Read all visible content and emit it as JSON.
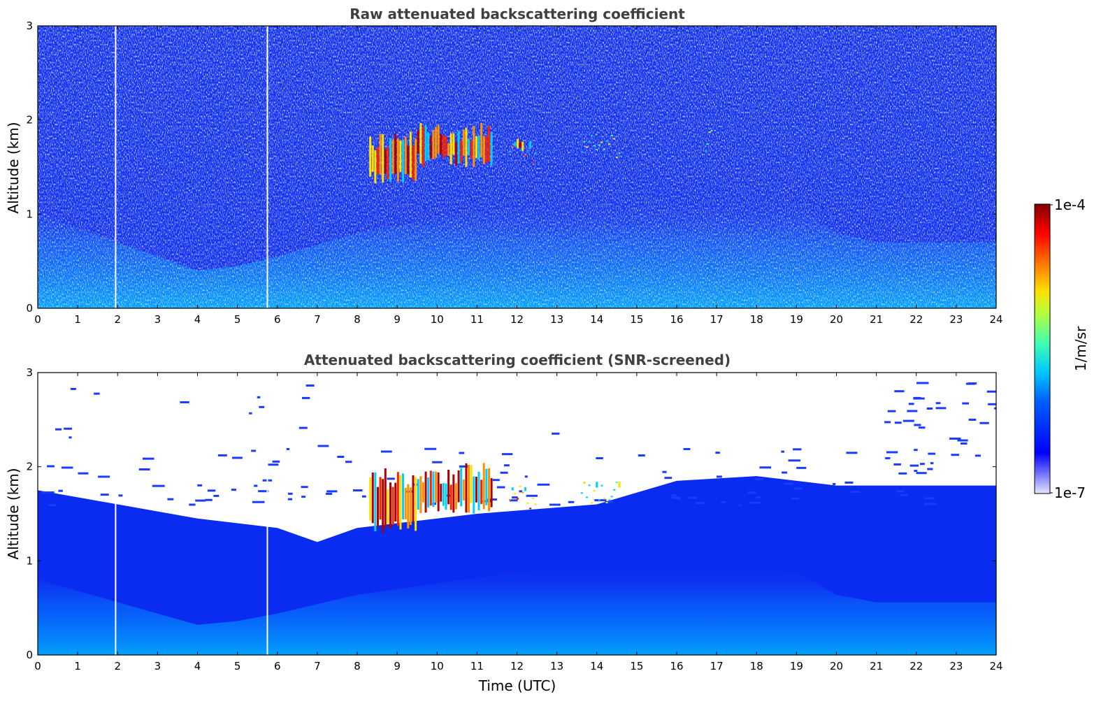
{
  "figure": {
    "xlabel": "Time (UTC)",
    "colorbar": {
      "label": "1/m/sr",
      "max_label": "1e-4",
      "min_label": "1e-7",
      "scale": "log",
      "colormap": "jet",
      "range": [
        1e-07,
        0.0001
      ]
    }
  },
  "chart_data": [
    {
      "type": "heatmap",
      "title": "Raw attenuated backscattering coefficient",
      "xlabel": "",
      "ylabel": "Altitude (km)",
      "xlim": [
        0,
        24
      ],
      "ylim": [
        0,
        3
      ],
      "xticks": [
        "0",
        "1",
        "2",
        "3",
        "4",
        "5",
        "6",
        "7",
        "8",
        "9",
        "10",
        "11",
        "12",
        "13",
        "14",
        "15",
        "16",
        "17",
        "18",
        "19",
        "20",
        "21",
        "22",
        "23",
        "24"
      ],
      "yticks": [
        "0",
        "1",
        "2",
        "3"
      ],
      "missing_profiles_utc": [
        1.95,
        5.75
      ],
      "background_color": "#1030f0",
      "noise_color": "#ffffff",
      "boundary_layer": [
        {
          "t": 0,
          "top_km": 1.0
        },
        {
          "t": 2,
          "top_km": 0.7
        },
        {
          "t": 3,
          "top_km": 0.55
        },
        {
          "t": 4,
          "top_km": 0.4
        },
        {
          "t": 5,
          "top_km": 0.45
        },
        {
          "t": 6,
          "top_km": 0.55
        },
        {
          "t": 8,
          "top_km": 0.8
        },
        {
          "t": 12,
          "top_km": 1.1
        },
        {
          "t": 16,
          "top_km": 1.2
        },
        {
          "t": 19,
          "top_km": 1.1
        },
        {
          "t": 20,
          "top_km": 0.8
        },
        {
          "t": 21,
          "top_km": 0.7
        },
        {
          "t": 24,
          "top_km": 0.7
        }
      ],
      "cloud_features": [
        {
          "t_start": 8.3,
          "t_end": 9.5,
          "base_km": 1.3,
          "top_km": 1.9,
          "intensity": "high"
        },
        {
          "t_start": 9.5,
          "t_end": 11.4,
          "base_km": 1.5,
          "top_km": 2.0,
          "intensity": "high"
        },
        {
          "t_start": 11.8,
          "t_end": 12.5,
          "base_km": 1.65,
          "top_km": 1.8,
          "intensity": "high"
        },
        {
          "t_start": 13.6,
          "t_end": 14.6,
          "base_km": 1.75,
          "top_km": 1.85,
          "intensity": "medium"
        },
        {
          "t_start": 16.7,
          "t_end": 16.9,
          "base_km": 1.8,
          "top_km": 1.9,
          "intensity": "medium"
        }
      ]
    },
    {
      "type": "heatmap",
      "title": "Attenuated backscattering coefficient (SNR-screened)",
      "xlabel": "Time (UTC)",
      "ylabel": "Altitude (km)",
      "xlim": [
        0,
        24
      ],
      "ylim": [
        0,
        3
      ],
      "xticks": [
        "0",
        "1",
        "2",
        "3",
        "4",
        "5",
        "6",
        "7",
        "8",
        "9",
        "10",
        "11",
        "12",
        "13",
        "14",
        "15",
        "16",
        "17",
        "18",
        "19",
        "20",
        "21",
        "22",
        "23",
        "24"
      ],
      "yticks": [
        "0",
        "1",
        "2",
        "3"
      ],
      "missing_profiles_utc": [
        1.95,
        5.75
      ],
      "background_color": "#0a2cf0",
      "screened_color": "#ffffff",
      "signal_top": [
        {
          "t": 0,
          "top_km": 1.75
        },
        {
          "t": 2,
          "top_km": 1.6
        },
        {
          "t": 4,
          "top_km": 1.45
        },
        {
          "t": 6,
          "top_km": 1.35
        },
        {
          "t": 7,
          "top_km": 1.2
        },
        {
          "t": 8,
          "top_km": 1.35
        },
        {
          "t": 11,
          "top_km": 1.5
        },
        {
          "t": 14,
          "top_km": 1.6
        },
        {
          "t": 16,
          "top_km": 1.85
        },
        {
          "t": 18,
          "top_km": 1.9
        },
        {
          "t": 20,
          "top_km": 1.8
        },
        {
          "t": 24,
          "top_km": 1.8
        }
      ],
      "cloud_features": [
        {
          "t_start": 8.3,
          "t_end": 9.5,
          "base_km": 1.3,
          "top_km": 2.0,
          "intensity": "high"
        },
        {
          "t_start": 9.5,
          "t_end": 11.4,
          "base_km": 1.5,
          "top_km": 2.05,
          "intensity": "high"
        },
        {
          "t_start": 11.8,
          "t_end": 12.5,
          "base_km": 1.65,
          "top_km": 1.8,
          "intensity": "high"
        },
        {
          "t_start": 13.6,
          "t_end": 14.6,
          "base_km": 1.75,
          "top_km": 1.85,
          "intensity": "medium"
        }
      ]
    }
  ]
}
